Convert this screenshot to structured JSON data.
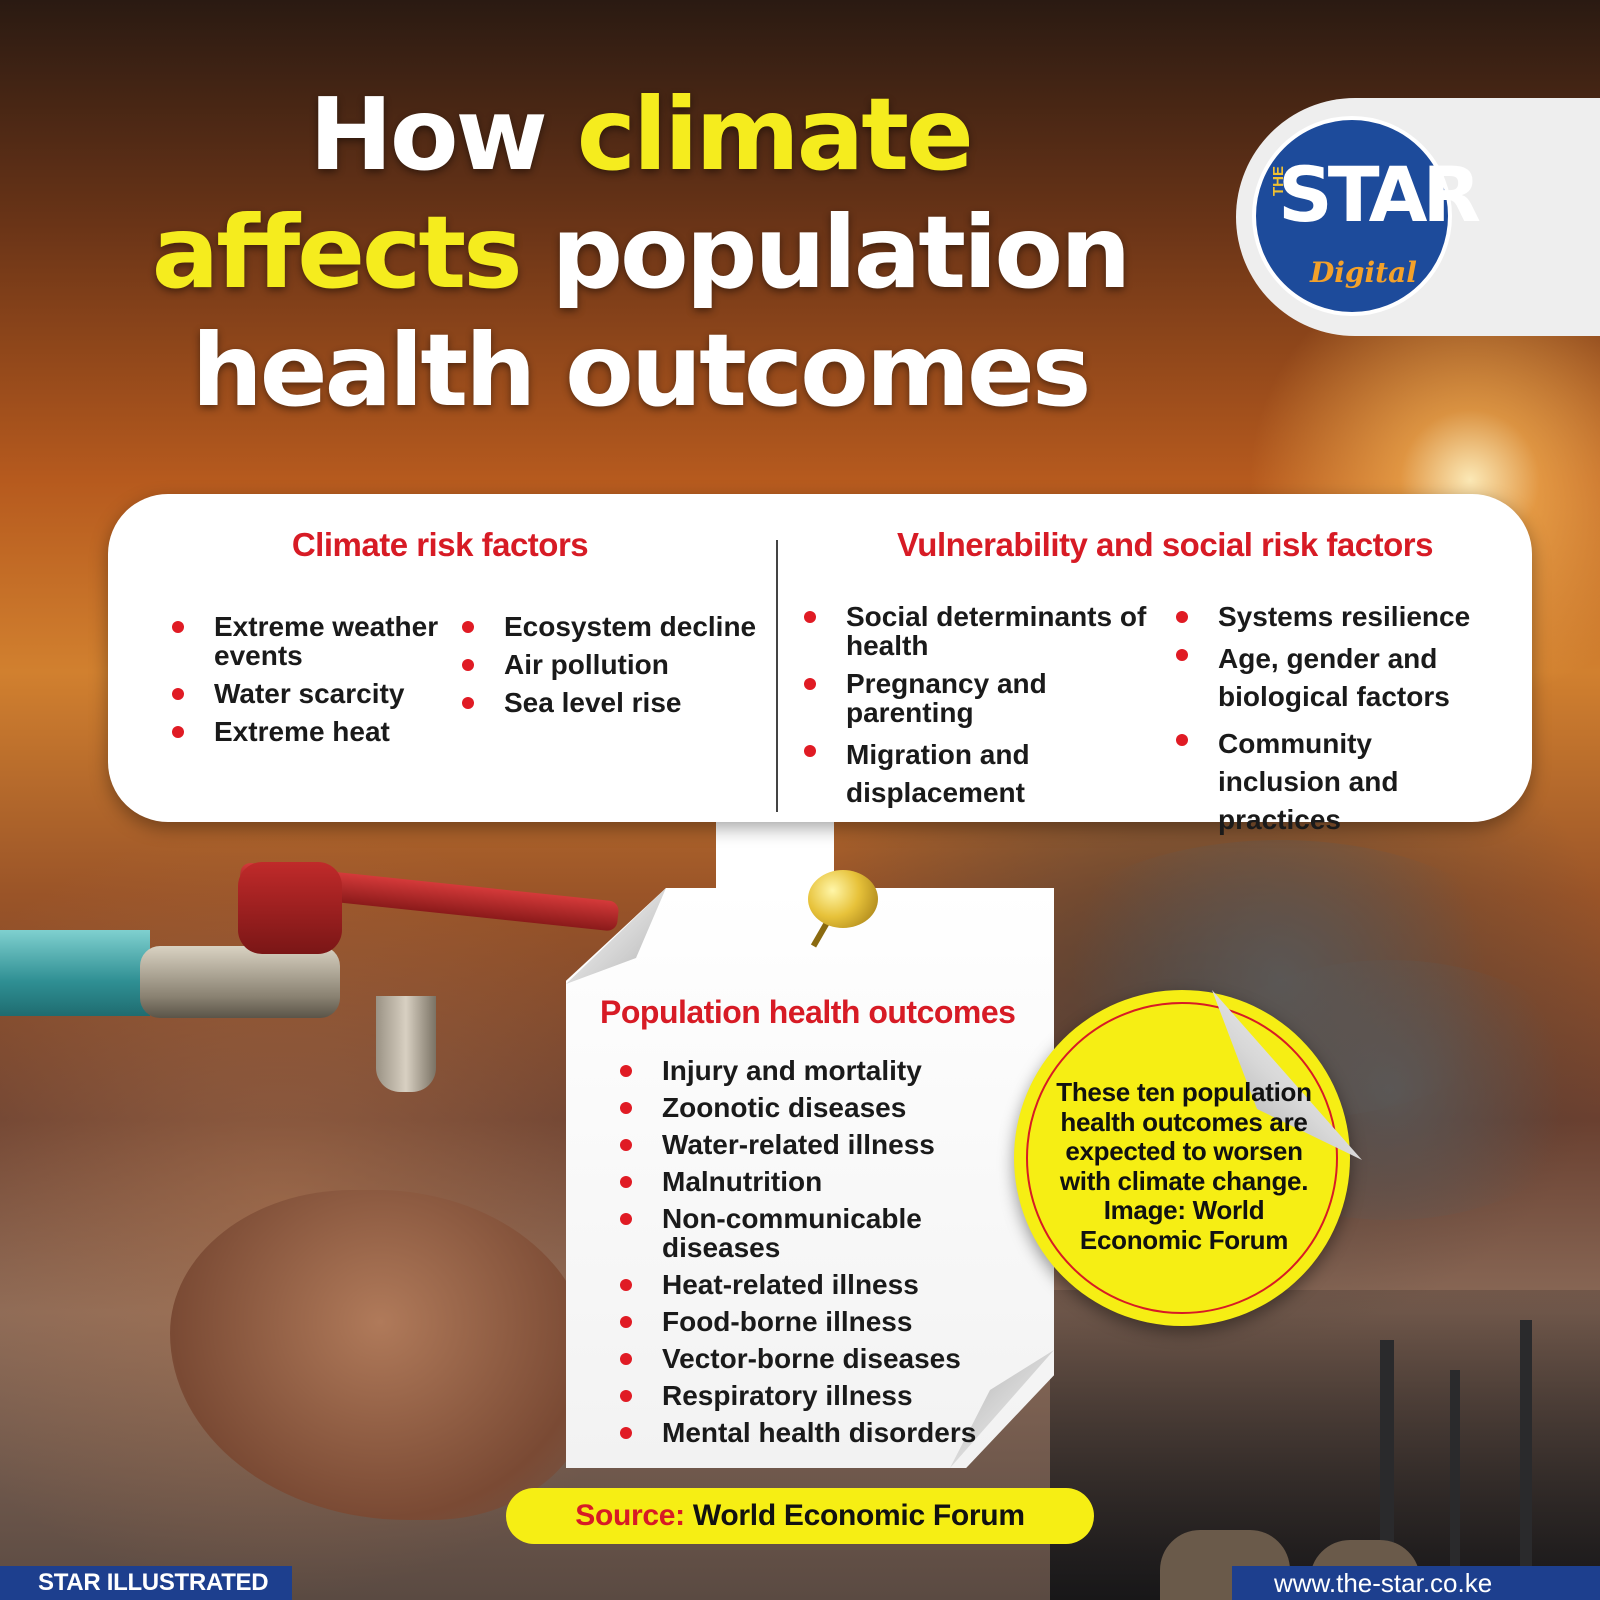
{
  "title": {
    "part1": "How ",
    "part2": "climate",
    "part3": "affects",
    "part4": " population",
    "part5": "health outcomes"
  },
  "logo": {
    "the": "THE",
    "star": "STAR",
    "digital": "Digital"
  },
  "climate_risk": {
    "heading": "Climate risk factors",
    "col1": [
      "Extreme weather events",
      "Water scarcity",
      "Extreme heat"
    ],
    "col2": [
      "Ecosystem decline",
      "Air pollution",
      "Sea level rise"
    ]
  },
  "social_risk": {
    "heading": "Vulnerability and social risk factors",
    "col1": [
      "Social determinants of health",
      "Pregnancy and parenting",
      "Migration and displacement"
    ],
    "col2": [
      "Systems resilience",
      "Age, gender and biological factors",
      "Community inclusion and practices"
    ]
  },
  "outcomes": {
    "heading": "Population health outcomes",
    "items": [
      "Injury and mortality",
      "Zoonotic diseases",
      "Water-related illness",
      "Malnutrition",
      "Non-communicable diseases",
      "Heat-related illness",
      "Food-borne illness",
      "Vector-borne diseases",
      "Respiratory illness",
      "Mental health disorders"
    ]
  },
  "sticker": {
    "text": "These ten population health outcomes are expected to worsen with climate change. Image: World Economic Forum"
  },
  "source": {
    "label": "Source:",
    "value": " World Economic Forum"
  },
  "footer": {
    "left": "STAR ILLUSTRATED",
    "right": "www.the-star.co.ke"
  },
  "colors": {
    "accent_yellow": "#f5ec1e",
    "heading_red": "#d71b25",
    "footer_blue": "#1d3f8e"
  }
}
